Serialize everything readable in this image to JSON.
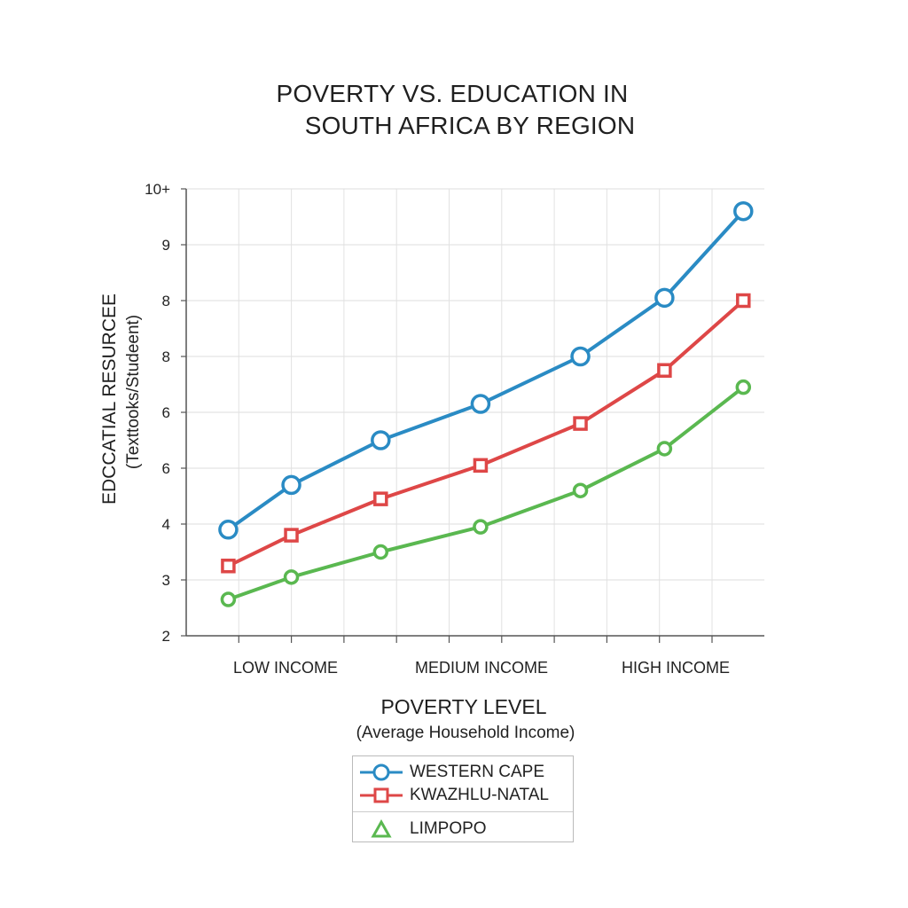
{
  "chart_data": {
    "type": "line",
    "title": "POVERTY VS. EDUCATION IN SOUTH AFRICA BY REGION",
    "title_lines": [
      "POVERTY VS. EDUCATION IN",
      "SOUTH AFRICA BY REGION"
    ],
    "xlabel": "POVERTY LEVEL",
    "xlabel_sub": "(Average Household Income)",
    "ylabel": "EDCCATIAL RESURCEE",
    "ylabel_sub": "(Texttooks/Studeent)",
    "x_tick_labels": [
      "LOW INCOME",
      "MEDIUM INCOME",
      "HIGH INCOME"
    ],
    "y_tick_labels": [
      "2",
      "3",
      "4",
      "6",
      "6",
      "8",
      "8",
      "9",
      "10+"
    ],
    "ylim": [
      2,
      10
    ],
    "grid": true,
    "legend_position": "bottom-center",
    "series": [
      {
        "name": "WESTERN CAPE",
        "color": "#2a8bc4",
        "marker": "circle",
        "points": [
          [
            0.4,
            3.9
          ],
          [
            1.0,
            4.7
          ],
          [
            1.85,
            5.5
          ],
          [
            2.8,
            6.15
          ],
          [
            3.75,
            7.0
          ],
          [
            4.55,
            8.05
          ],
          [
            5.3,
            9.6
          ]
        ]
      },
      {
        "name": "KWAZHLU-NATAL",
        "color": "#de4747",
        "marker": "square",
        "points": [
          [
            0.4,
            3.25
          ],
          [
            1.0,
            3.8
          ],
          [
            1.85,
            4.45
          ],
          [
            2.8,
            5.05
          ],
          [
            3.75,
            5.8
          ],
          [
            4.55,
            6.75
          ],
          [
            5.3,
            8.0
          ]
        ]
      },
      {
        "name": "LIMPOPO",
        "color": "#5ab850",
        "marker": "triangle",
        "points": [
          [
            0.4,
            2.65
          ],
          [
            1.0,
            3.05
          ],
          [
            1.85,
            3.5
          ],
          [
            2.8,
            3.95
          ],
          [
            3.75,
            4.6
          ],
          [
            4.55,
            5.35
          ],
          [
            5.3,
            6.45
          ]
        ]
      }
    ]
  }
}
